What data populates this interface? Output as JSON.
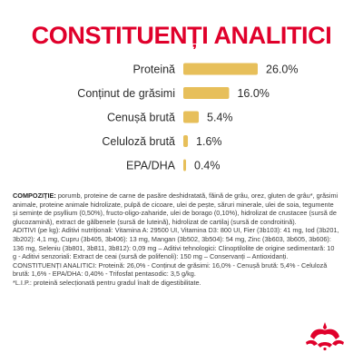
{
  "page": {
    "title": "CONSTITUENȚI ANALITICI"
  },
  "colors": {
    "title": "#e0002b",
    "bar": "#e7bf5a",
    "label": "#2b2b2b",
    "logo_red": "#e0002b"
  },
  "chart_data": {
    "type": "bar",
    "orientation": "horizontal",
    "title": "CONSTITUENȚI ANALITICI",
    "categories": [
      "Proteină",
      "Conținut de grăsimi",
      "Cenușă brută",
      "Celuloză brută",
      "EPA/DHA"
    ],
    "values": [
      26.0,
      16.0,
      5.4,
      1.6,
      0.4
    ],
    "value_labels": [
      "26.0%",
      "16.0%",
      "5.4%",
      "1.6%",
      "0.4%"
    ],
    "unit": "%",
    "xlim": [
      0,
      26.0
    ],
    "grid": false,
    "legend": "none"
  },
  "composition": {
    "paragraphs": [
      {
        "heading": "COMPOZIȚIE:",
        "text": " porumb, proteine de carne de pasăre deshidratată, făină de grâu, orez, gluten de grâu*, grăsimi animale, proteine animale hidrolizate, pulpă de cicoare, ulei de pește, săruri minerale, ulei de soia, tegumente și semințe de psyllium (0,50%), fructo-oligo-zaharide, ulei de borago (0,10%), hidrolizat de crustacee (sursă de glucozamină), extract de gălbenele (sursă de luteină), hidrolizat de cartilaj (sursă de condroitină)."
      },
      {
        "heading": "",
        "text": "ADITIVI (pe kg): Aditivi nutriționali: Vitamina A: 29500 UI, Vitamina D3: 800 UI, Fier (3b103): 41 mg, Iod (3b201, 3b202): 4,1 mg, Cupru (3b405, 3b406): 13 mg, Mangan (3b502, 3b504): 54 mg, Zinc (3b603, 3b605, 3b606): 136 mg, Seleniu (3b801, 3b811, 3b812): 0,09 mg – Aditivi tehnologici: Clinoptilolite de origine sedimentară: 10 g - Aditivi senzoriali: Extract de ceai (sursă de polifenoli): 150 mg – Conservanți – Antioxidanți."
      },
      {
        "heading": "",
        "text": "CONSTITUENȚI ANALITICI: Proteină: 26,0% - Conținut de grăsimi: 16,0% - Cenușă brută: 5,4% - Celuloză brută: 1,6% - EPA/DHA: 0,40% - Trifosfat pentasodic: 3,5 g/kg."
      },
      {
        "heading": "",
        "text": "*L.I.P.: proteină selecționată pentru gradul înalt de digestibilitate."
      }
    ]
  },
  "logo": {
    "icon": "royal-canin-crown-logo"
  }
}
